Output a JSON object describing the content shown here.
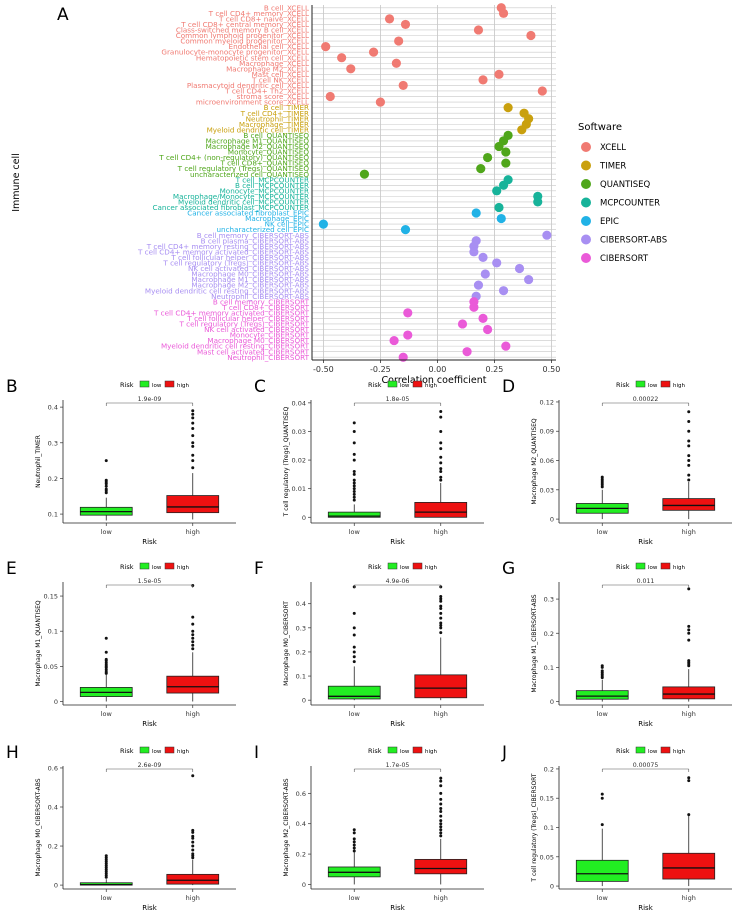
{
  "figure": {
    "dot_panel": {
      "panel_letter": "A",
      "legend_title": "Software",
      "software": [
        {
          "name": "XCELL",
          "color": "#f07a72"
        },
        {
          "name": "TIMER",
          "color": "#c9a00e"
        },
        {
          "name": "QUANTISEQ",
          "color": "#4fa61a"
        },
        {
          "name": "MCPCOUNTER",
          "color": "#17b39a"
        },
        {
          "name": "EPIC",
          "color": "#21b2e6"
        },
        {
          "name": "CIBERSORT-ABS",
          "color": "#a88ff2"
        },
        {
          "name": "CIBERSORT",
          "color": "#ea5ad8"
        }
      ]
    },
    "box_legend": {
      "title": "Risk",
      "low_label": "low",
      "high_label": "high",
      "low_color": "#22ee22",
      "high_color": "#ee1111"
    }
  },
  "chart_data": [
    {
      "type": "scatter",
      "panel": "A",
      "xlabel": "Correlation coefficient",
      "ylabel": "Immune cell",
      "xlim": [
        -0.55,
        0.52
      ],
      "xticks": [
        -0.5,
        -0.25,
        0.0,
        0.25,
        0.5
      ],
      "xtick_labels": [
        "-0.50",
        "-0.25",
        "0.00",
        "0.25",
        "0.50"
      ],
      "points": [
        {
          "cell": "B cell_XCELL",
          "software": "XCELL",
          "r": 0.28
        },
        {
          "cell": "T cell CD4+ memory_XCELL",
          "software": "XCELL",
          "r": 0.29
        },
        {
          "cell": "T cell CD8+ naive_XCELL",
          "software": "XCELL",
          "r": -0.21
        },
        {
          "cell": "T cell CD8+ central memory_XCELL",
          "software": "XCELL",
          "r": -0.14
        },
        {
          "cell": "Class-switched memory B cell_XCELL",
          "software": "XCELL",
          "r": 0.18
        },
        {
          "cell": "Common lymphoid progenitor_XCELL",
          "software": "XCELL",
          "r": 0.41
        },
        {
          "cell": "Common myeloid progenitor_XCELL",
          "software": "XCELL",
          "r": -0.17
        },
        {
          "cell": "Endothelial cell_XCELL",
          "software": "XCELL",
          "r": -0.49
        },
        {
          "cell": "Granulocyte-monocyte progenitor_XCELL",
          "software": "XCELL",
          "r": -0.28
        },
        {
          "cell": "Hematopoietic stem cell_XCELL",
          "software": "XCELL",
          "r": -0.42
        },
        {
          "cell": "Macrophage_XCELL",
          "software": "XCELL",
          "r": -0.18
        },
        {
          "cell": "Macrophage M2_XCELL",
          "software": "XCELL",
          "r": -0.38
        },
        {
          "cell": "Mast cell_XCELL",
          "software": "XCELL",
          "r": 0.27
        },
        {
          "cell": "T cell NK_XCELL",
          "software": "XCELL",
          "r": 0.2
        },
        {
          "cell": "Plasmacytoid dendritic cell_XCELL",
          "software": "XCELL",
          "r": -0.15
        },
        {
          "cell": "T cell CD4+ Th2_XCELL",
          "software": "XCELL",
          "r": 0.46
        },
        {
          "cell": "stroma score_XCELL",
          "software": "XCELL",
          "r": -0.47
        },
        {
          "cell": "microenvironment score_XCELL",
          "software": "XCELL",
          "r": -0.25
        },
        {
          "cell": "B cell_TIMER",
          "software": "TIMER",
          "r": 0.31
        },
        {
          "cell": "T cell CD4+_TIMER",
          "software": "TIMER",
          "r": 0.38
        },
        {
          "cell": "Neutrophil_TIMER",
          "software": "TIMER",
          "r": 0.4
        },
        {
          "cell": "Macrophage_TIMER",
          "software": "TIMER",
          "r": 0.39
        },
        {
          "cell": "Myeloid dendritic cell_TIMER",
          "software": "TIMER",
          "r": 0.37
        },
        {
          "cell": "B cell_QUANTISEQ",
          "software": "QUANTISEQ",
          "r": 0.31
        },
        {
          "cell": "Macrophage M1_QUANTISEQ",
          "software": "QUANTISEQ",
          "r": 0.29
        },
        {
          "cell": "Macrophage M2_QUANTISEQ",
          "software": "QUANTISEQ",
          "r": 0.27
        },
        {
          "cell": "Monocyte_QUANTISEQ",
          "software": "QUANTISEQ",
          "r": 0.3
        },
        {
          "cell": "T cell CD4+ (non-regulatory)_QUANTISEQ",
          "software": "QUANTISEQ",
          "r": 0.22
        },
        {
          "cell": "T cell CD8+_QUANTISEQ",
          "software": "QUANTISEQ",
          "r": 0.3
        },
        {
          "cell": "T cell regulatory (Tregs)_QUANTISEQ",
          "software": "QUANTISEQ",
          "r": 0.19
        },
        {
          "cell": "uncharacterized cell_QUANTISEQ",
          "software": "QUANTISEQ",
          "r": -0.32
        },
        {
          "cell": "T cell_MCPCOUNTER",
          "software": "MCPCOUNTER",
          "r": 0.31
        },
        {
          "cell": "B cell_MCPCOUNTER",
          "software": "MCPCOUNTER",
          "r": 0.29
        },
        {
          "cell": "Monocyte_MCPCOUNTER",
          "software": "MCPCOUNTER",
          "r": 0.26
        },
        {
          "cell": "Macrophage/Monocyte_MCPCOUNTER",
          "software": "MCPCOUNTER",
          "r": 0.44
        },
        {
          "cell": "Myeloid dendritic cell_MCPCOUNTER",
          "software": "MCPCOUNTER",
          "r": 0.44
        },
        {
          "cell": "Cancer associated fibroblast_MCPCOUNTER",
          "software": "MCPCOUNTER",
          "r": 0.27
        },
        {
          "cell": "Cancer associated fibroblast_EPIC",
          "software": "EPIC",
          "r": 0.17
        },
        {
          "cell": "Macrophage_EPIC",
          "software": "EPIC",
          "r": 0.28
        },
        {
          "cell": "NK cell_EPIC",
          "software": "EPIC",
          "r": -0.5
        },
        {
          "cell": "uncharacterized cell_EPIC",
          "software": "EPIC",
          "r": -0.14
        },
        {
          "cell": "B cell memory_CIBERSORT-ABS",
          "software": "CIBERSORT-ABS",
          "r": 0.48
        },
        {
          "cell": "B cell plasma_CIBERSORT-ABS",
          "software": "CIBERSORT-ABS",
          "r": 0.17
        },
        {
          "cell": "T cell CD4+ memory resting_CIBERSORT-ABS",
          "software": "CIBERSORT-ABS",
          "r": 0.16
        },
        {
          "cell": "T cell CD4+ memory activated_CIBERSORT-ABS",
          "software": "CIBERSORT-ABS",
          "r": 0.16
        },
        {
          "cell": "T cell follicular helper_CIBERSORT-ABS",
          "software": "CIBERSORT-ABS",
          "r": 0.2
        },
        {
          "cell": "T cell regulatory (Tregs)_CIBERSORT-ABS",
          "software": "CIBERSORT-ABS",
          "r": 0.26
        },
        {
          "cell": "NK cell activated_CIBERSORT-ABS",
          "software": "CIBERSORT-ABS",
          "r": 0.36
        },
        {
          "cell": "Macrophage M0_CIBERSORT-ABS",
          "software": "CIBERSORT-ABS",
          "r": 0.21
        },
        {
          "cell": "Macrophage M1_CIBERSORT-ABS",
          "software": "CIBERSORT-ABS",
          "r": 0.4
        },
        {
          "cell": "Macrophage M2_CIBERSORT-ABS",
          "software": "CIBERSORT-ABS",
          "r": 0.18
        },
        {
          "cell": "Myeloid dendritic cell resting_CIBERSORT-ABS",
          "software": "CIBERSORT-ABS",
          "r": 0.29
        },
        {
          "cell": "Neutrophil_CIBERSORT-ABS",
          "software": "CIBERSORT-ABS",
          "r": 0.17
        },
        {
          "cell": "B cell memory_CIBERSORT",
          "software": "CIBERSORT",
          "r": 0.16
        },
        {
          "cell": "T cell CD8+_CIBERSORT",
          "software": "CIBERSORT",
          "r": 0.16
        },
        {
          "cell": "T cell CD4+ memory activated_CIBERSORT",
          "software": "CIBERSORT",
          "r": -0.13
        },
        {
          "cell": "T cell follicular helper_CIBERSORT",
          "software": "CIBERSORT",
          "r": 0.2
        },
        {
          "cell": "T cell regulatory (Tregs)_CIBERSORT",
          "software": "CIBERSORT",
          "r": 0.11
        },
        {
          "cell": "NK cell activated_CIBERSORT",
          "software": "CIBERSORT",
          "r": 0.22
        },
        {
          "cell": "Monocyte_CIBERSORT",
          "software": "CIBERSORT",
          "r": -0.13
        },
        {
          "cell": "Macrophage M0_CIBERSORT",
          "software": "CIBERSORT",
          "r": -0.19
        },
        {
          "cell": "Myeloid dendritic cell resting_CIBERSORT",
          "software": "CIBERSORT",
          "r": 0.3
        },
        {
          "cell": "Mast cell activated_CIBERSORT",
          "software": "CIBERSORT",
          "r": 0.13
        },
        {
          "cell": "Neutrophil_CIBERSORT",
          "software": "CIBERSORT",
          "r": -0.15
        }
      ]
    },
    {
      "type": "box",
      "panel": "B",
      "ylabel": "Neutrophil_TIMER",
      "xlabel": "Risk",
      "categories": [
        "low",
        "high"
      ],
      "pvalue": "1.9e-09",
      "ylim": [
        0.075,
        0.42
      ],
      "yticks": [
        0.1,
        0.2,
        0.3,
        0.4
      ],
      "boxes": [
        {
          "q1": 0.097,
          "median": 0.107,
          "q3": 0.119,
          "wlo": 0.082,
          "whi": 0.146,
          "outliers": [
            0.16,
            0.165,
            0.17,
            0.178,
            0.185,
            0.19,
            0.195,
            0.25
          ]
        },
        {
          "q1": 0.104,
          "median": 0.12,
          "q3": 0.152,
          "wlo": 0.085,
          "whi": 0.215,
          "outliers": [
            0.23,
            0.25,
            0.265,
            0.29,
            0.3,
            0.32,
            0.34,
            0.355,
            0.37,
            0.38,
            0.39
          ]
        }
      ]
    },
    {
      "type": "box",
      "panel": "C",
      "ylabel": "T cell regulatory (Tregs)_QUANTISEQ",
      "xlabel": "Risk",
      "categories": [
        "low",
        "high"
      ],
      "pvalue": "1.8e-05",
      "ylim": [
        -0.002,
        0.041
      ],
      "yticks": [
        0.0,
        0.01,
        0.02,
        0.03,
        0.04
      ],
      "boxes": [
        {
          "q1": 0.0,
          "median": 0.0004,
          "q3": 0.0018,
          "wlo": 0.0,
          "whi": 0.0045,
          "outliers": [
            0.006,
            0.007,
            0.008,
            0.009,
            0.01,
            0.011,
            0.012,
            0.013,
            0.015,
            0.016,
            0.02,
            0.022,
            0.026,
            0.03,
            0.033
          ]
        },
        {
          "q1": 0.0,
          "median": 0.0018,
          "q3": 0.0052,
          "wlo": 0.0,
          "whi": 0.012,
          "outliers": [
            0.013,
            0.014,
            0.016,
            0.017,
            0.019,
            0.021,
            0.024,
            0.026,
            0.03,
            0.035,
            0.037
          ]
        }
      ]
    },
    {
      "type": "box",
      "panel": "D",
      "ylabel": "Macrophage M2_QUANTISEQ",
      "xlabel": "Risk",
      "categories": [
        "low",
        "high"
      ],
      "pvalue": "0.00022",
      "ylim": [
        -0.004,
        0.122
      ],
      "yticks": [
        0.0,
        0.03,
        0.06,
        0.09,
        0.12
      ],
      "boxes": [
        {
          "q1": 0.006,
          "median": 0.011,
          "q3": 0.016,
          "wlo": 0.0,
          "whi": 0.03,
          "outliers": [
            0.033,
            0.035,
            0.037,
            0.039,
            0.041,
            0.043
          ]
        },
        {
          "q1": 0.009,
          "median": 0.014,
          "q3": 0.021,
          "wlo": 0.0,
          "whi": 0.038,
          "outliers": [
            0.04,
            0.045,
            0.055,
            0.06,
            0.065,
            0.075,
            0.08,
            0.09,
            0.1,
            0.11
          ]
        }
      ]
    },
    {
      "type": "box",
      "panel": "E",
      "ylabel": "Macrophage M1_QUANTISEQ",
      "xlabel": "Risk",
      "categories": [
        "low",
        "high"
      ],
      "pvalue": "1.5e-05",
      "ylim": [
        -0.005,
        0.17
      ],
      "yticks": [
        0.0,
        0.05,
        0.1,
        0.15
      ],
      "boxes": [
        {
          "q1": 0.007,
          "median": 0.013,
          "q3": 0.02,
          "wlo": 0.0,
          "whi": 0.038,
          "outliers": [
            0.04,
            0.042,
            0.045,
            0.048,
            0.05,
            0.052,
            0.055,
            0.058,
            0.06,
            0.07,
            0.09
          ]
        },
        {
          "q1": 0.012,
          "median": 0.021,
          "q3": 0.036,
          "wlo": 0.0,
          "whi": 0.07,
          "outliers": [
            0.075,
            0.08,
            0.085,
            0.09,
            0.095,
            0.1,
            0.11,
            0.12,
            0.165
          ]
        }
      ]
    },
    {
      "type": "box",
      "panel": "F",
      "ylabel": "Macrophage M0_CIBERSORT",
      "xlabel": "Risk",
      "categories": [
        "low",
        "high"
      ],
      "pvalue": "4.9e-06",
      "ylim": [
        -0.02,
        0.49
      ],
      "yticks": [
        0.0,
        0.1,
        0.2,
        0.3,
        0.4
      ],
      "boxes": [
        {
          "q1": 0.005,
          "median": 0.016,
          "q3": 0.058,
          "wlo": 0.0,
          "whi": 0.14,
          "outliers": [
            0.16,
            0.18,
            0.2,
            0.22,
            0.27,
            0.3,
            0.36,
            0.47
          ]
        },
        {
          "q1": 0.01,
          "median": 0.05,
          "q3": 0.105,
          "wlo": 0.0,
          "whi": 0.26,
          "outliers": [
            0.28,
            0.3,
            0.31,
            0.32,
            0.34,
            0.36,
            0.38,
            0.39,
            0.41,
            0.42,
            0.43,
            0.47
          ]
        }
      ]
    },
    {
      "type": "box",
      "panel": "G",
      "ylabel": "Macrophage M1_CIBERSORT-ABS",
      "xlabel": "Risk",
      "categories": [
        "low",
        "high"
      ],
      "pvalue": "0.011",
      "ylim": [
        -0.01,
        0.35
      ],
      "yticks": [
        0.0,
        0.1,
        0.2,
        0.3
      ],
      "boxes": [
        {
          "q1": 0.007,
          "median": 0.016,
          "q3": 0.032,
          "wlo": 0.0,
          "whi": 0.064,
          "outliers": [
            0.07,
            0.075,
            0.08,
            0.085,
            0.09,
            0.1,
            0.105
          ]
        },
        {
          "q1": 0.008,
          "median": 0.022,
          "q3": 0.043,
          "wlo": 0.0,
          "whi": 0.095,
          "outliers": [
            0.105,
            0.11,
            0.115,
            0.12,
            0.18,
            0.2,
            0.21,
            0.22,
            0.33
          ]
        }
      ]
    },
    {
      "type": "box",
      "panel": "H",
      "ylabel": "Macrophage M0_CIBERSORT-ABS",
      "xlabel": "Risk",
      "categories": [
        "low",
        "high"
      ],
      "pvalue": "2.6e-09",
      "ylim": [
        -0.02,
        0.61
      ],
      "yticks": [
        0.0,
        0.2,
        0.4,
        0.6
      ],
      "boxes": [
        {
          "q1": 0.0,
          "median": 0.002,
          "q3": 0.012,
          "wlo": 0.0,
          "whi": 0.03,
          "outliers": [
            0.04,
            0.05,
            0.06,
            0.07,
            0.08,
            0.09,
            0.1,
            0.11,
            0.12,
            0.13,
            0.14,
            0.15
          ]
        },
        {
          "q1": 0.005,
          "median": 0.025,
          "q3": 0.055,
          "wlo": 0.0,
          "whi": 0.13,
          "outliers": [
            0.14,
            0.15,
            0.16,
            0.18,
            0.2,
            0.22,
            0.24,
            0.25,
            0.27,
            0.28,
            0.56
          ]
        }
      ]
    },
    {
      "type": "box",
      "panel": "I",
      "ylabel": "Macrophage M2_CIBERSORT-ABS",
      "xlabel": "Risk",
      "categories": [
        "low",
        "high"
      ],
      "pvalue": "1.7e-05",
      "ylim": [
        -0.03,
        0.78
      ],
      "yticks": [
        0.0,
        0.2,
        0.4,
        0.6
      ],
      "boxes": [
        {
          "q1": 0.05,
          "median": 0.08,
          "q3": 0.115,
          "wlo": 0.0,
          "whi": 0.21,
          "outliers": [
            0.22,
            0.24,
            0.26,
            0.28,
            0.3,
            0.34,
            0.36
          ]
        },
        {
          "q1": 0.07,
          "median": 0.105,
          "q3": 0.165,
          "wlo": 0.0,
          "whi": 0.3,
          "outliers": [
            0.32,
            0.34,
            0.36,
            0.38,
            0.4,
            0.42,
            0.45,
            0.48,
            0.5,
            0.53,
            0.56,
            0.6,
            0.65,
            0.68,
            0.7
          ]
        }
      ]
    },
    {
      "type": "box",
      "panel": "J",
      "ylabel": "T cell regulatory (Tregs)_CIBERSORT",
      "xlabel": "Risk",
      "categories": [
        "low",
        "high"
      ],
      "pvalue": "0.00075",
      "ylim": [
        -0.005,
        0.205
      ],
      "yticks": [
        0.0,
        0.05,
        0.1,
        0.15,
        0.2
      ],
      "boxes": [
        {
          "q1": 0.008,
          "median": 0.021,
          "q3": 0.044,
          "wlo": 0.0,
          "whi": 0.098,
          "outliers": [
            0.105,
            0.15,
            0.157
          ]
        },
        {
          "q1": 0.012,
          "median": 0.031,
          "q3": 0.056,
          "wlo": 0.0,
          "whi": 0.12,
          "outliers": [
            0.122,
            0.18,
            0.185
          ]
        }
      ]
    }
  ]
}
